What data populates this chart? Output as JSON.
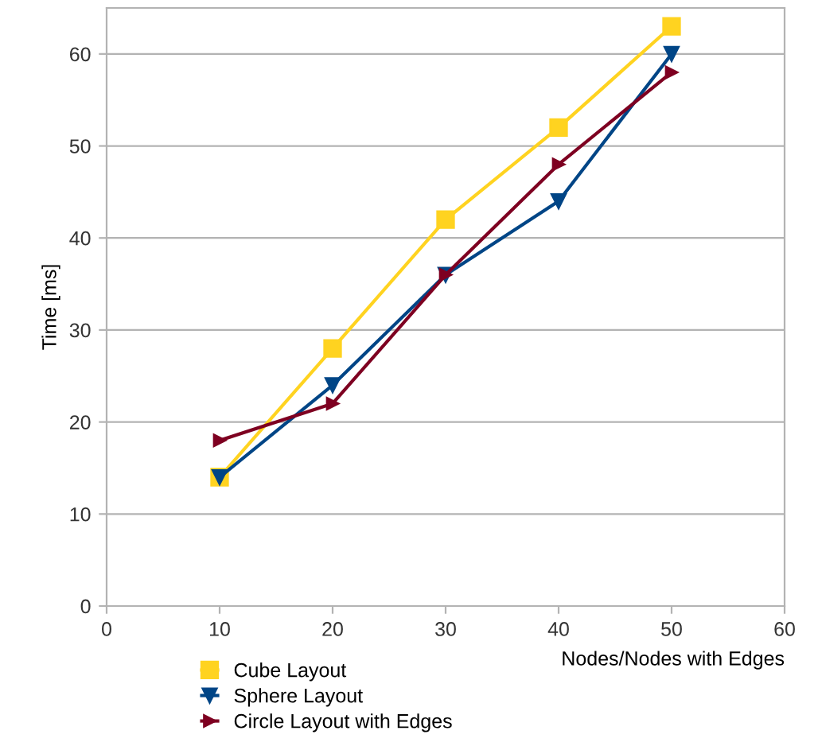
{
  "chart_data": {
    "type": "line",
    "xlabel": "Nodes/Nodes with Edges",
    "ylabel": "Time [ms]",
    "x": [
      10,
      20,
      30,
      40,
      50
    ],
    "series": [
      {
        "name": "Cube Layout",
        "color": "#ffd320",
        "marker": "square",
        "values": [
          14,
          28,
          42,
          52,
          63
        ]
      },
      {
        "name": "Sphere Layout",
        "color": "#004586",
        "marker": "triangle_down",
        "values": [
          14,
          24,
          36,
          44,
          60
        ]
      },
      {
        "name": "Circle Layout with Edges",
        "color": "#7e0021",
        "marker": "triangle_right",
        "values": [
          18,
          22,
          36,
          48,
          58
        ]
      }
    ],
    "xlim": [
      0,
      60
    ],
    "xticks": [
      0,
      10,
      20,
      30,
      40,
      50,
      60
    ],
    "ylim": [
      0,
      65
    ],
    "yticks": [
      0,
      10,
      20,
      30,
      40,
      50,
      60
    ],
    "grid": "y",
    "legend": "bottom",
    "line_style": "solid"
  }
}
